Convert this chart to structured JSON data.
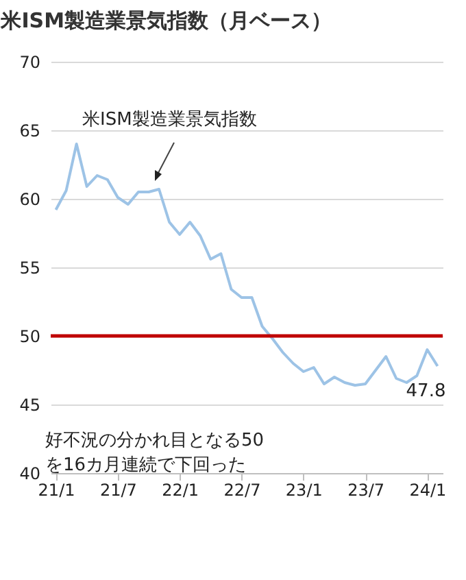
{
  "chart_data": {
    "type": "line",
    "title": "米ISM製造業景気指数（月ベース）",
    "categories": [
      "21/1",
      null,
      null,
      null,
      null,
      null,
      "21/7",
      null,
      null,
      null,
      null,
      null,
      "22/1",
      null,
      null,
      null,
      null,
      null,
      "22/7",
      null,
      null,
      null,
      null,
      null,
      "23/1",
      null,
      null,
      null,
      null,
      null,
      "23/7",
      null,
      null,
      null,
      null,
      null,
      "24/1",
      null
    ],
    "series": [
      {
        "name": "米ISM製造業景気指数",
        "color": "#9dc3e6",
        "values": [
          59.2,
          60.6,
          64.0,
          60.9,
          61.7,
          61.4,
          60.1,
          59.6,
          60.5,
          60.5,
          60.7,
          58.3,
          57.4,
          58.3,
          57.3,
          55.6,
          56.0,
          53.4,
          52.8,
          52.8,
          50.7,
          49.8,
          48.8,
          48.0,
          47.4,
          47.7,
          46.5,
          47.0,
          46.6,
          46.4,
          46.5,
          47.5,
          48.5,
          46.9,
          46.6,
          47.1,
          49.0,
          47.8
        ],
        "value_labels": [
          null,
          null,
          null,
          null,
          null,
          null,
          null,
          null,
          null,
          null,
          null,
          null,
          null,
          null,
          null,
          null,
          null,
          null,
          null,
          null,
          null,
          null,
          null,
          null,
          null,
          null,
          null,
          null,
          null,
          null,
          null,
          null,
          null,
          null,
          null,
          null,
          null,
          "47.8"
        ]
      }
    ],
    "ylim": [
      40,
      70
    ],
    "yticks": [
      40,
      45,
      50,
      55,
      60,
      65,
      70
    ],
    "grid": "y",
    "ref_lines": [
      {
        "axis": "y",
        "value": 50,
        "color": "#c00000"
      }
    ],
    "annotations": [
      "好不況の分かれ目となる50\nを16カ月連続で下回った"
    ]
  }
}
